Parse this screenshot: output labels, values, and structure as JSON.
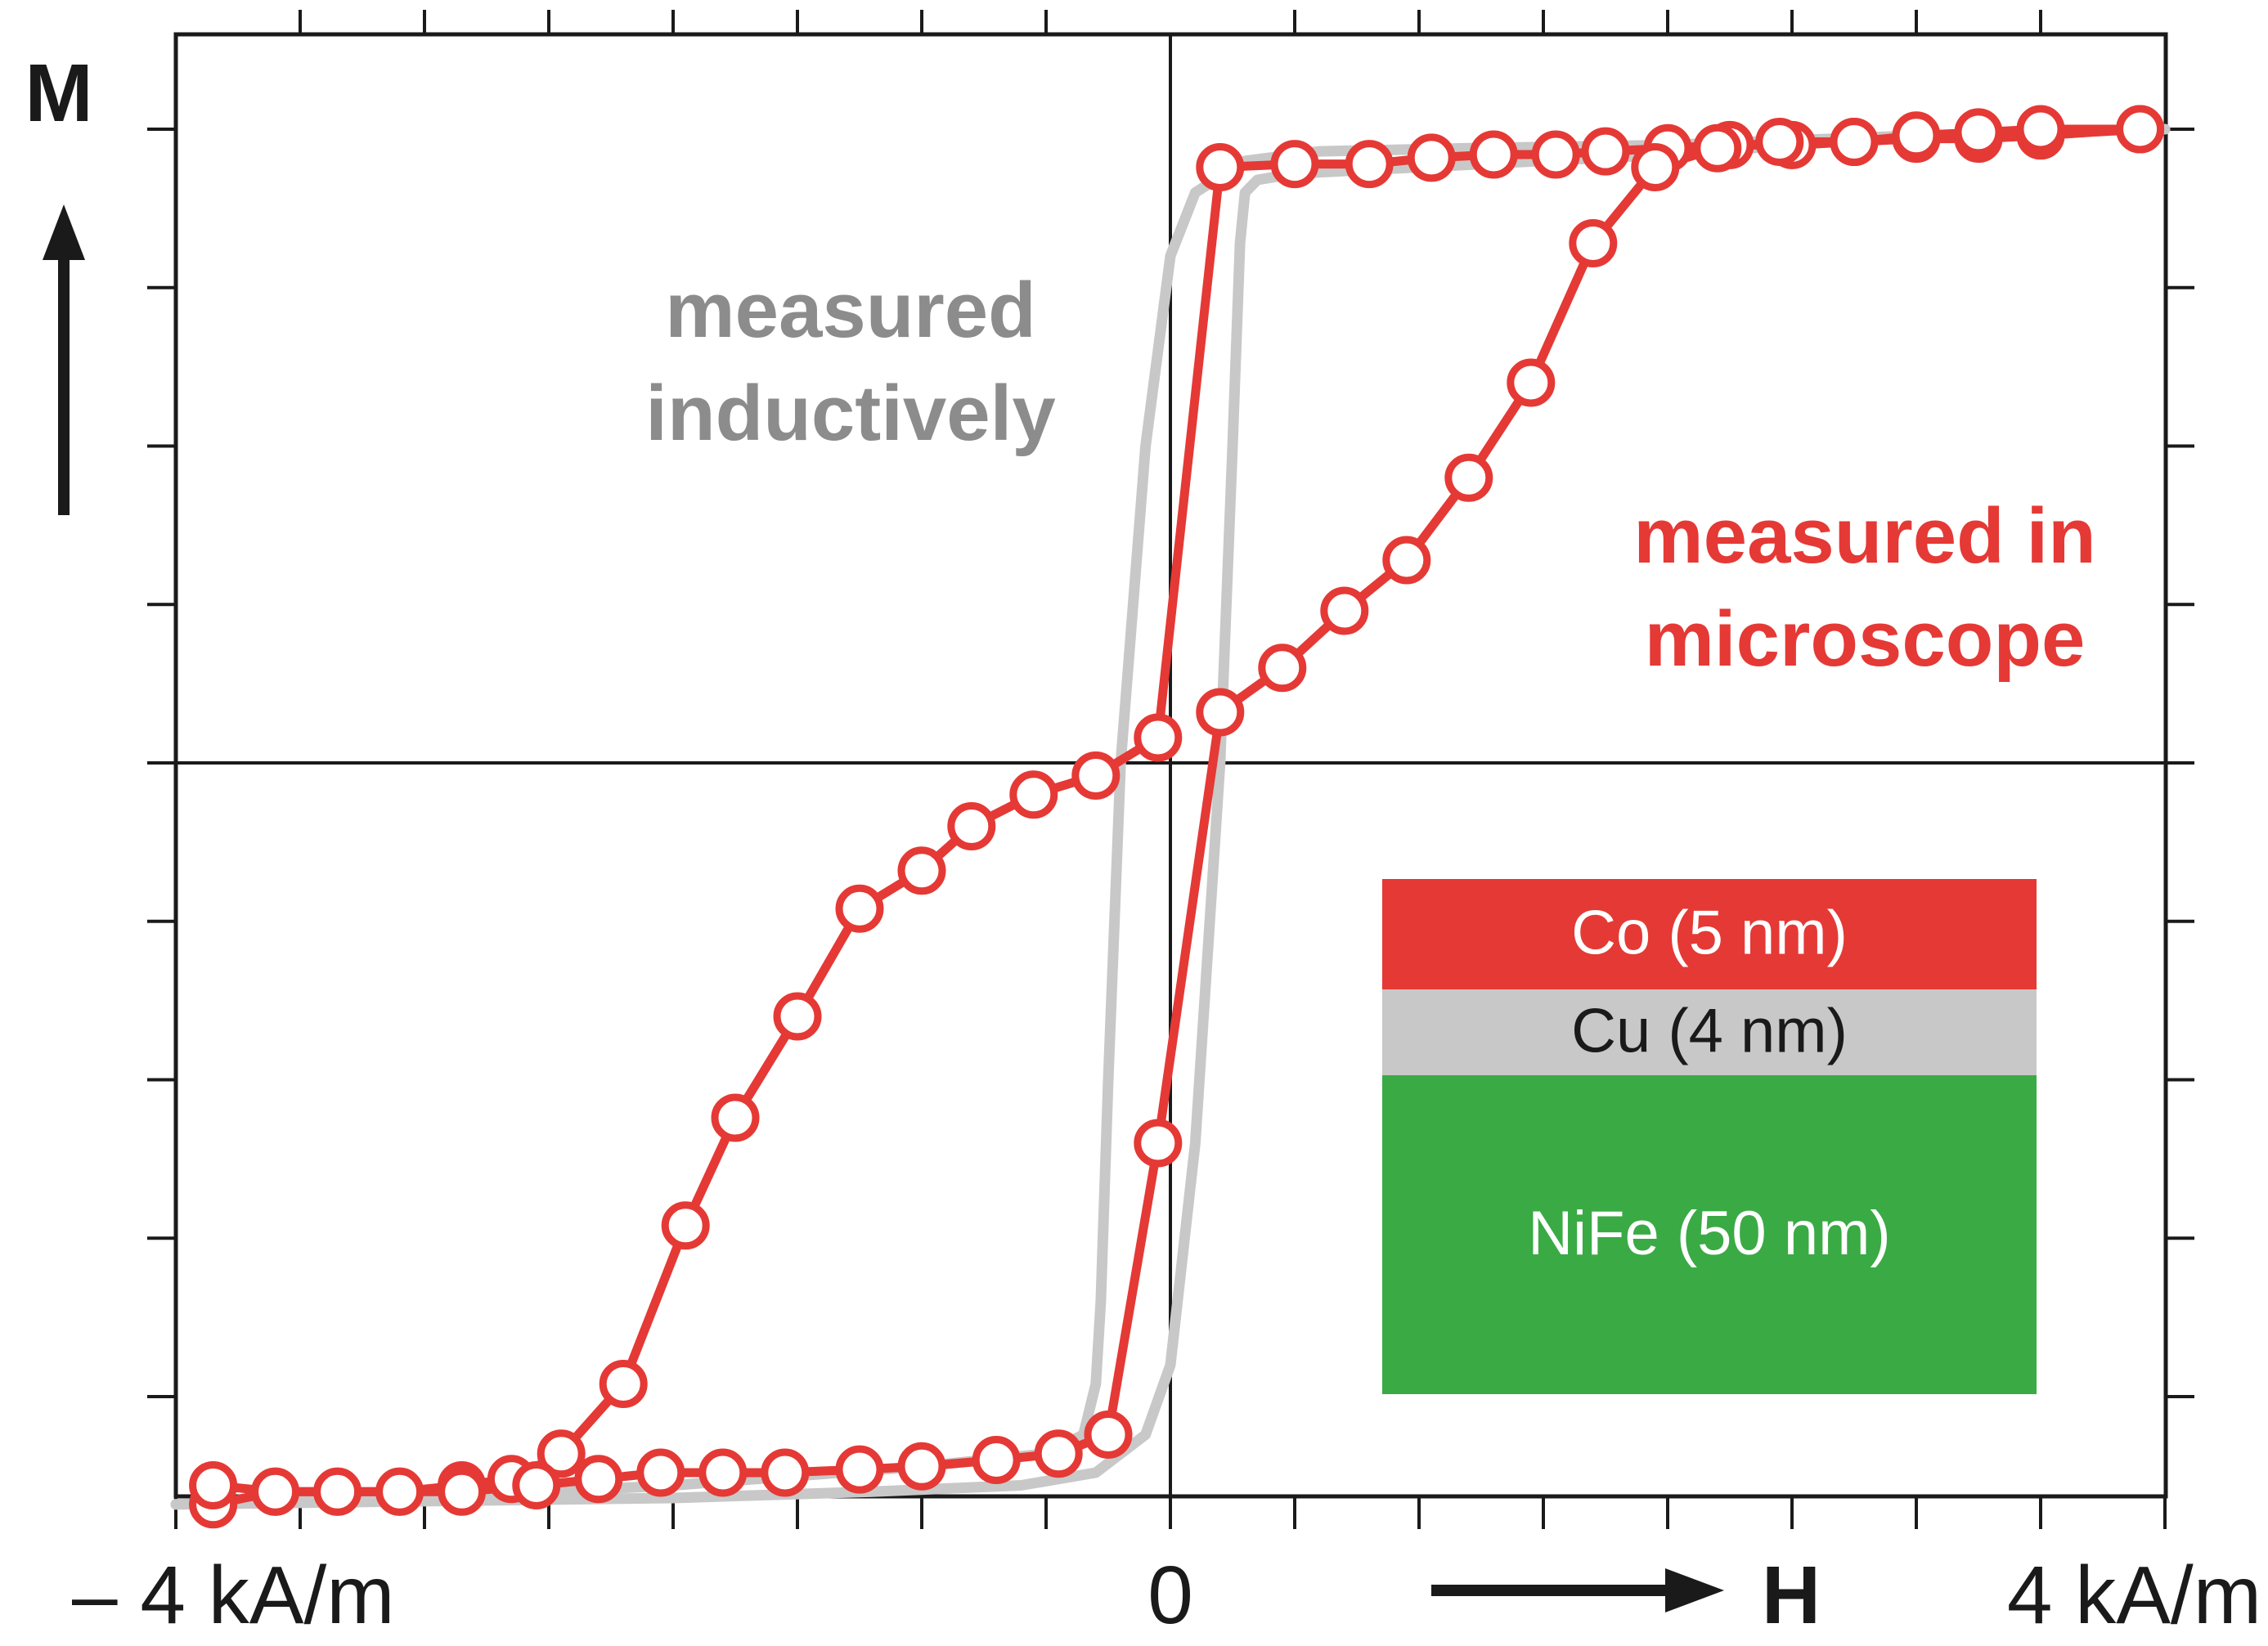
{
  "chart_data": {
    "type": "line",
    "xlabel": "H",
    "ylabel": "M",
    "x_unit": "kA/m",
    "xlim": [
      -4,
      4
    ],
    "ylim": [
      -1.15,
      1.0
    ],
    "x_tick_labels": [
      {
        "value": -4,
        "label": "– 4 kA/m"
      },
      {
        "value": 0,
        "label": "0"
      },
      {
        "value": 4,
        "label": "4 kA/m"
      }
    ],
    "x_minor_ticks": [
      -3.5,
      -3,
      -2.5,
      -2,
      -1.5,
      -1,
      -0.5,
      0.5,
      1,
      1.5,
      2,
      2.5,
      3,
      3.5
    ],
    "y_minor_ticks": [
      -1.0,
      -0.75,
      -0.5,
      -0.25,
      0.25,
      0.5,
      0.75,
      1.0
    ],
    "grid": false,
    "annotations": [
      {
        "text": [
          "measured",
          "inductively"
        ],
        "color": "#8c8c8c",
        "series": "measured inductively"
      },
      {
        "text": [
          "measured in",
          "microscope"
        ],
        "color": "#e53935",
        "series": "measured in microscope"
      }
    ],
    "colors": {
      "microscope": "#e53935",
      "inductive": "#c8c8c8",
      "axis": "#1a1a1a"
    },
    "series": [
      {
        "name": "measured in microscope",
        "branch": "descending",
        "x": [
          3.9,
          3.5,
          3.25,
          3.0,
          2.75,
          2.5,
          2.25,
          2.0,
          1.75,
          1.55,
          1.3,
          1.05,
          0.8,
          0.5,
          0.2,
          -0.05,
          -0.3,
          -0.55,
          -0.8,
          -1.0,
          -1.25,
          -1.5,
          -1.75,
          -1.95,
          -2.2,
          -2.45,
          -2.65,
          -2.85,
          -3.1,
          -3.35,
          -3.6,
          -3.85
        ],
        "y": [
          1.0,
          0.99,
          0.985,
          0.985,
          0.98,
          0.975,
          0.975,
          0.97,
          0.965,
          0.96,
          0.96,
          0.955,
          0.945,
          0.945,
          0.94,
          0.04,
          -0.02,
          -0.05,
          -0.1,
          -0.17,
          -0.23,
          -0.4,
          -0.56,
          -0.73,
          -0.98,
          -1.09,
          -1.13,
          -1.14,
          -1.15,
          -1.15,
          -1.15,
          -1.17
        ]
      },
      {
        "name": "measured in microscope",
        "branch": "ascending",
        "x": [
          -3.85,
          -3.6,
          -3.35,
          -3.1,
          -2.85,
          -2.55,
          -2.3,
          -2.05,
          -1.8,
          -1.55,
          -1.25,
          -1.0,
          -0.7,
          -0.45,
          -0.25,
          -0.05,
          0.2,
          0.45,
          0.7,
          0.95,
          1.2,
          1.45,
          1.7,
          1.95,
          2.2,
          2.45,
          2.75,
          3.0,
          3.25,
          3.5,
          3.9
        ],
        "y": [
          -1.14,
          -1.15,
          -1.15,
          -1.15,
          -1.15,
          -1.14,
          -1.13,
          -1.12,
          -1.12,
          -1.12,
          -1.115,
          -1.11,
          -1.1,
          -1.09,
          -1.06,
          -0.6,
          0.08,
          0.15,
          0.24,
          0.32,
          0.45,
          0.6,
          0.82,
          0.94,
          0.97,
          0.98,
          0.98,
          0.99,
          0.995,
          1.0,
          1.0
        ]
      },
      {
        "name": "measured inductively",
        "branch": "descending",
        "x": [
          4.0,
          3.0,
          2.0,
          1.2,
          0.6,
          0.3,
          0.1,
          0.0,
          -0.1,
          -0.2,
          -0.25,
          -0.28,
          -0.3,
          -0.35,
          -0.5,
          -1.0,
          -2.0,
          -3.0,
          -4.0
        ],
        "y": [
          1.0,
          0.99,
          0.975,
          0.97,
          0.965,
          0.95,
          0.9,
          0.8,
          0.5,
          0.0,
          -0.5,
          -0.85,
          -0.98,
          -1.06,
          -1.09,
          -1.11,
          -1.14,
          -1.16,
          -1.17
        ]
      },
      {
        "name": "measured inductively",
        "branch": "ascending",
        "x": [
          -4.0,
          -3.0,
          -2.0,
          -1.2,
          -0.6,
          -0.3,
          -0.1,
          0.0,
          0.1,
          0.2,
          0.25,
          0.28,
          0.3,
          0.35,
          0.5,
          1.0,
          2.0,
          3.0,
          4.0
        ],
        "y": [
          -1.17,
          -1.165,
          -1.16,
          -1.15,
          -1.14,
          -1.12,
          -1.06,
          -0.95,
          -0.6,
          0.0,
          0.5,
          0.82,
          0.9,
          0.92,
          0.93,
          0.94,
          0.96,
          0.99,
          1.0
        ]
      }
    ],
    "inset": {
      "layers": [
        {
          "label": "Co (5 nm)",
          "fill": "#e53935",
          "text_color": "#ffffff",
          "thickness_nm": 5
        },
        {
          "label": "Cu (4 nm)",
          "fill": "#c8c8c8",
          "text_color": "#1a1a1a",
          "thickness_nm": 4
        },
        {
          "label": "NiFe (50 nm)",
          "fill": "#3aaa45",
          "text_color": "#ffffff",
          "thickness_nm": 50
        }
      ]
    }
  }
}
